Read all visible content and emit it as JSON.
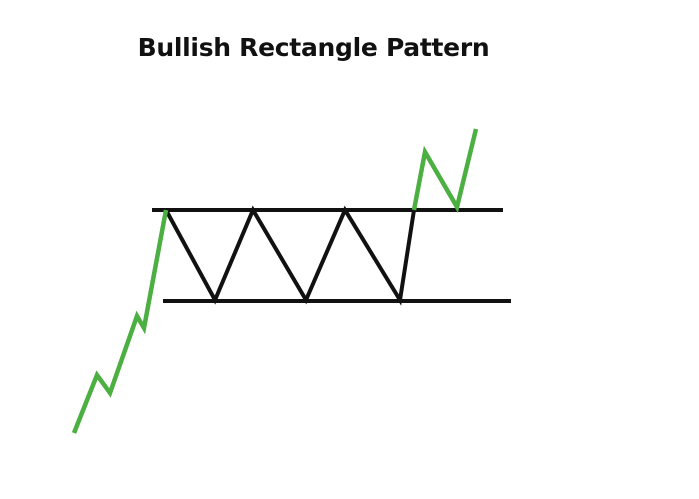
{
  "title": "Bullish Rectangle Pattern",
  "colors": {
    "uptrend": "#4caf42",
    "range": "#111111",
    "background": "#ffffff"
  }
}
